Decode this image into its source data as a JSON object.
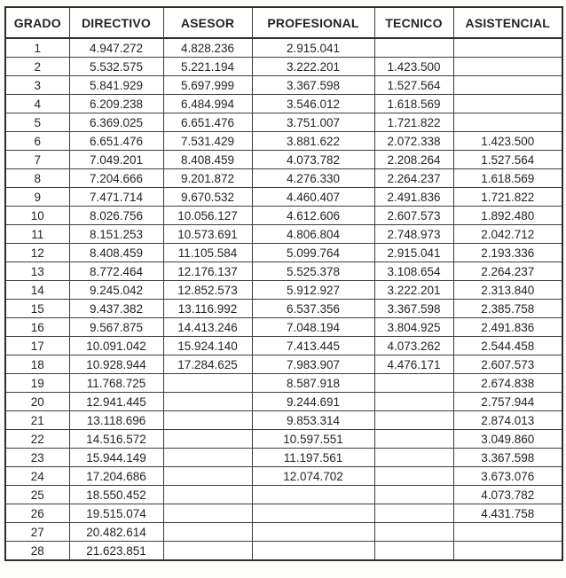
{
  "table": {
    "columns": [
      "GRADO",
      "DIRECTIVO",
      "ASESOR",
      "PROFESIONAL",
      "TECNICO",
      "ASISTENCIAL"
    ],
    "rows": [
      [
        "1",
        "4.947.272",
        "4.828.236",
        "2.915.041",
        "",
        ""
      ],
      [
        "2",
        "5.532.575",
        "5.221.194",
        "3.222.201",
        "1.423.500",
        ""
      ],
      [
        "3",
        "5.841.929",
        "5.697.999",
        "3.367.598",
        "1.527.564",
        ""
      ],
      [
        "4",
        "6.209.238",
        "6.484.994",
        "3.546.012",
        "1.618.569",
        ""
      ],
      [
        "5",
        "6.369.025",
        "6.651.476",
        "3.751.007",
        "1.721.822",
        ""
      ],
      [
        "6",
        "6.651.476",
        "7.531.429",
        "3.881.622",
        "2.072.338",
        "1.423.500"
      ],
      [
        "7",
        "7.049.201",
        "8.408.459",
        "4.073.782",
        "2.208.264",
        "1.527.564"
      ],
      [
        "8",
        "7.204.666",
        "9.201.872",
        "4.276.330",
        "2.264.237",
        "1.618.569"
      ],
      [
        "9",
        "7.471.714",
        "9.670.532",
        "4.460.407",
        "2.491.836",
        "1.721.822"
      ],
      [
        "10",
        "8.026.756",
        "10.056.127",
        "4.612.606",
        "2.607.573",
        "1.892.480"
      ],
      [
        "11",
        "8.151.253",
        "10.573.691",
        "4.806.804",
        "2.748.973",
        "2.042.712"
      ],
      [
        "12",
        "8.408.459",
        "11.105.584",
        "5.099.764",
        "2.915.041",
        "2.193.336"
      ],
      [
        "13",
        "8.772.464",
        "12.176.137",
        "5.525.378",
        "3.108.654",
        "2.264.237"
      ],
      [
        "14",
        "9.245.042",
        "12.852.573",
        "5.912.927",
        "3.222.201",
        "2.313.840"
      ],
      [
        "15",
        "9.437.382",
        "13.116.992",
        "6.537.356",
        "3.367.598",
        "2.385.758"
      ],
      [
        "16",
        "9.567.875",
        "14.413.246",
        "7.048.194",
        "3.804.925",
        "2.491.836"
      ],
      [
        "17",
        "10.091.042",
        "15.924.140",
        "7.413.445",
        "4.073.262",
        "2.544.458"
      ],
      [
        "18",
        "10.928.944",
        "17.284.625",
        "7.983.907",
        "4.476.171",
        "2.607.573"
      ],
      [
        "19",
        "11.768.725",
        "",
        "8.587.918",
        "",
        "2.674.838"
      ],
      [
        "20",
        "12.941.445",
        "",
        "9.244.691",
        "",
        "2.757.944"
      ],
      [
        "21",
        "13.118.696",
        "",
        "9.853.314",
        "",
        "2.874.013"
      ],
      [
        "22",
        "14.516.572",
        "",
        "10.597.551",
        "",
        "3.049.860"
      ],
      [
        "23",
        "15.944.149",
        "",
        "11.197.561",
        "",
        "3.367.598"
      ],
      [
        "24",
        "17.204.686",
        "",
        "12.074.702",
        "",
        "3.673.076"
      ],
      [
        "25",
        "18.550.452",
        "",
        "",
        "",
        "4.073.782"
      ],
      [
        "26",
        "19.515.074",
        "",
        "",
        "",
        "4.431.758"
      ],
      [
        "27",
        "20.482.614",
        "",
        "",
        "",
        ""
      ],
      [
        "28",
        "21.623.851",
        "",
        "",
        "",
        ""
      ]
    ]
  },
  "colors": {
    "border": "#3d3d3d",
    "outer_border": "#2e2e2e",
    "text": "#242424",
    "page_background": "#fcfcfa",
    "table_background": "#ffffff"
  }
}
